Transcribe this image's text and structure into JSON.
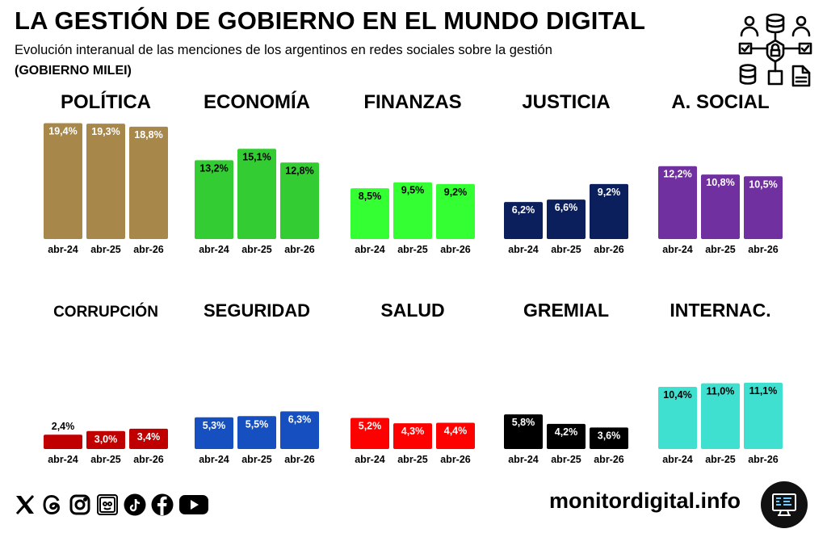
{
  "header": {
    "title": "LA GESTIÓN DE GOBIERNO EN EL MUNDO DIGITAL",
    "subtitle": "Evolución interanual de las menciones de los argentinos en redes sociales sobre la gestión",
    "subtitle2": "(GOBIERNO MILEI)"
  },
  "footer": {
    "brand": "monitordigital.info",
    "social_icons": [
      "x-icon",
      "threads-icon",
      "instagram-icon",
      "picta-icon",
      "tiktok-icon",
      "facebook-icon",
      "youtube-icon"
    ]
  },
  "chart_data": [
    {
      "type": "bar",
      "title": "POLÍTICA",
      "categories": [
        "abr-24",
        "abr-25",
        "abr-26"
      ],
      "values": [
        19.4,
        19.3,
        18.8
      ],
      "labels": [
        "19,4%",
        "19,3%",
        "18,8%"
      ],
      "color": "#A8884A",
      "label_color": "#ffffff"
    },
    {
      "type": "bar",
      "title": "ECONOMÍA",
      "categories": [
        "abr-24",
        "abr-25",
        "abr-26"
      ],
      "values": [
        13.2,
        15.1,
        12.8
      ],
      "labels": [
        "13,2%",
        "15,1%",
        "12,8%"
      ],
      "color": "#33CC33",
      "label_color": "#000000"
    },
    {
      "type": "bar",
      "title": "FINANZAS",
      "categories": [
        "abr-24",
        "abr-25",
        "abr-26"
      ],
      "values": [
        8.5,
        9.5,
        9.2
      ],
      "labels": [
        "8,5%",
        "9,5%",
        "9,2%"
      ],
      "color": "#33FF33",
      "label_color": "#000000"
    },
    {
      "type": "bar",
      "title": "JUSTICIA",
      "categories": [
        "abr-24",
        "abr-25",
        "abr-26"
      ],
      "values": [
        6.2,
        6.6,
        9.2
      ],
      "labels": [
        "6,2%",
        "6,6%",
        "9,2%"
      ],
      "color": "#0A1F5C",
      "label_color": "#ffffff"
    },
    {
      "type": "bar",
      "title": "A. SOCIAL",
      "categories": [
        "abr-24",
        "abr-25",
        "abr-26"
      ],
      "values": [
        12.2,
        10.8,
        10.5
      ],
      "labels": [
        "12,2%",
        "10,8%",
        "10,5%"
      ],
      "color": "#7030A0",
      "label_color": "#ffffff"
    },
    {
      "type": "bar",
      "title": "CORRUPCIÓN",
      "categories": [
        "abr-24",
        "abr-25",
        "abr-26"
      ],
      "values": [
        2.4,
        3.0,
        3.4
      ],
      "labels": [
        "2,4%",
        "3,0%",
        "3,4%"
      ],
      "color": "#C00000",
      "label_color": "#ffffff"
    },
    {
      "type": "bar",
      "title": "SEGURIDAD",
      "categories": [
        "abr-24",
        "abr-25",
        "abr-26"
      ],
      "values": [
        5.3,
        5.5,
        6.3
      ],
      "labels": [
        "5,3%",
        "5,5%",
        "6,3%"
      ],
      "color": "#1650C0",
      "label_color": "#ffffff"
    },
    {
      "type": "bar",
      "title": "SALUD",
      "categories": [
        "abr-24",
        "abr-25",
        "abr-26"
      ],
      "values": [
        5.2,
        4.3,
        4.4
      ],
      "labels": [
        "5,2%",
        "4,3%",
        "4,4%"
      ],
      "color": "#FF0000",
      "label_color": "#ffffff"
    },
    {
      "type": "bar",
      "title": "GREMIAL",
      "categories": [
        "abr-24",
        "abr-25",
        "abr-26"
      ],
      "values": [
        5.8,
        4.2,
        3.6
      ],
      "labels": [
        "5,8%",
        "4,2%",
        "3,6%"
      ],
      "color": "#000000",
      "label_color": "#ffffff"
    },
    {
      "type": "bar",
      "title": "INTERNAC.",
      "categories": [
        "abr-24",
        "abr-25",
        "abr-26"
      ],
      "values": [
        10.4,
        11.0,
        11.1
      ],
      "labels": [
        "10,4%",
        "11,0%",
        "11,1%"
      ],
      "color": "#40E0D0",
      "label_color": "#000000"
    }
  ]
}
